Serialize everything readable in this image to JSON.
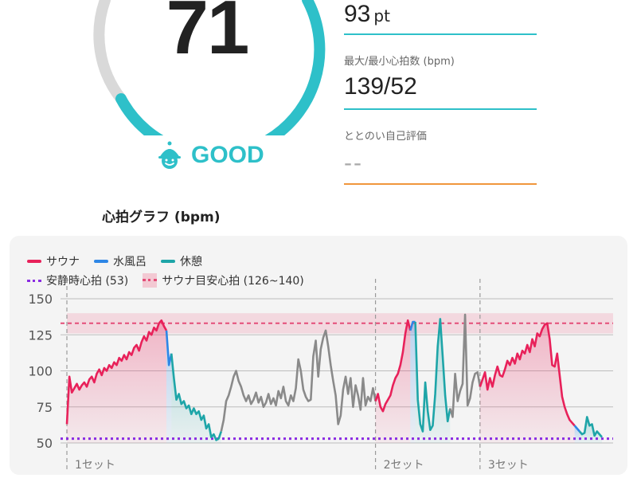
{
  "score": {
    "value": "71",
    "fraction": 0.71,
    "rating": "GOOD",
    "rating_icon": "smiley-cap-icon",
    "accent": "#2ec0c9"
  },
  "stats": [
    {
      "label": "",
      "value": "93",
      "unit": "pt"
    },
    {
      "label": "最大/最小心拍数 (bpm)",
      "value": "139/52"
    },
    {
      "label": "ととのい自己評価",
      "value": "--"
    }
  ],
  "graph_title": "心拍グラフ (bpm)",
  "legend": {
    "sauna": "サウナ",
    "water": "水風呂",
    "rest": "休憩",
    "resting_hr": "安静時心拍 (53)",
    "target_hr": "サウナ目安心拍 (126~140)"
  },
  "colors": {
    "sauna": "#e8215a",
    "water": "#2e86e6",
    "rest": "#1ea5a8",
    "other": "#8a8a8a",
    "resting": "#8a2be2",
    "target": "#e44d78"
  },
  "chart_data": {
    "type": "line",
    "title": "心拍グラフ (bpm)",
    "xlabel": "",
    "ylabel": "",
    "ylim": [
      50,
      155
    ],
    "yticks": [
      50,
      75,
      100,
      125,
      150
    ],
    "resting_hr": 53,
    "target_band": [
      126,
      140
    ],
    "grid": true,
    "set_labels": [
      "1セット",
      "2セット",
      "3セット"
    ],
    "sets": [
      {
        "label": "1セット",
        "start": 0
      },
      {
        "label": "2セット",
        "start": 124
      },
      {
        "label": "3セット",
        "start": 166
      }
    ],
    "phase_ranges": [
      {
        "phase": "sauna",
        "start": 0,
        "end": 40
      },
      {
        "phase": "water",
        "start": 40,
        "end": 42
      },
      {
        "phase": "rest",
        "start": 42,
        "end": 62
      },
      {
        "phase": "other",
        "start": 62,
        "end": 124
      },
      {
        "phase": "sauna",
        "start": 124,
        "end": 138
      },
      {
        "phase": "water",
        "start": 138,
        "end": 140
      },
      {
        "phase": "rest",
        "start": 140,
        "end": 154
      },
      {
        "phase": "other",
        "start": 154,
        "end": 166
      },
      {
        "phase": "sauna",
        "start": 166,
        "end": 204
      },
      {
        "phase": "water",
        "start": 204,
        "end": 206
      },
      {
        "phase": "rest",
        "start": 206,
        "end": 230
      }
    ],
    "series": [
      {
        "name": "サウナ",
        "phase": "sauna"
      },
      {
        "name": "水風呂",
        "phase": "water"
      },
      {
        "name": "休憩",
        "phase": "rest"
      }
    ],
    "values": [
      63,
      96,
      85,
      88,
      91,
      87,
      90,
      92,
      89,
      94,
      96,
      92,
      98,
      101,
      97,
      102,
      100,
      104,
      102,
      106,
      104,
      109,
      107,
      111,
      108,
      113,
      111,
      116,
      118,
      114,
      120,
      124,
      121,
      127,
      125,
      130,
      128,
      133,
      135,
      131,
      128,
      104,
      112,
      95,
      80,
      84,
      77,
      79,
      74,
      76,
      70,
      74,
      70,
      72,
      66,
      69,
      60,
      63,
      54,
      56,
      52,
      53,
      58,
      66,
      79,
      83,
      89,
      96,
      100,
      93,
      89,
      83,
      79,
      83,
      77,
      80,
      85,
      78,
      82,
      75,
      78,
      84,
      77,
      81,
      76,
      86,
      81,
      89,
      79,
      76,
      83,
      79,
      88,
      108,
      100,
      87,
      82,
      79,
      80,
      110,
      121,
      96,
      115,
      123,
      128,
      117,
      104,
      93,
      83,
      63,
      69,
      87,
      96,
      84,
      95,
      75,
      90,
      83,
      73,
      95,
      76,
      82,
      79,
      88,
      79,
      84,
      75,
      72,
      77,
      80,
      83,
      90,
      95,
      98,
      104,
      113,
      126,
      135,
      128,
      134,
      134,
      80,
      63,
      58,
      92,
      72,
      59,
      62,
      84,
      117,
      136,
      110,
      83,
      65,
      74,
      68,
      98,
      79,
      86,
      91,
      139,
      76,
      81,
      92,
      98,
      99,
      89,
      94,
      99,
      87,
      95,
      89,
      97,
      103,
      97,
      96,
      101,
      107,
      104,
      109,
      105,
      112,
      108,
      114,
      112,
      118,
      113,
      122,
      117,
      126,
      124,
      129,
      132,
      133,
      122,
      104,
      103,
      112,
      97,
      82,
      75,
      70,
      66,
      64,
      62,
      60,
      58,
      56,
      57,
      68,
      62,
      63,
      55,
      58,
      56,
      54
    ]
  }
}
